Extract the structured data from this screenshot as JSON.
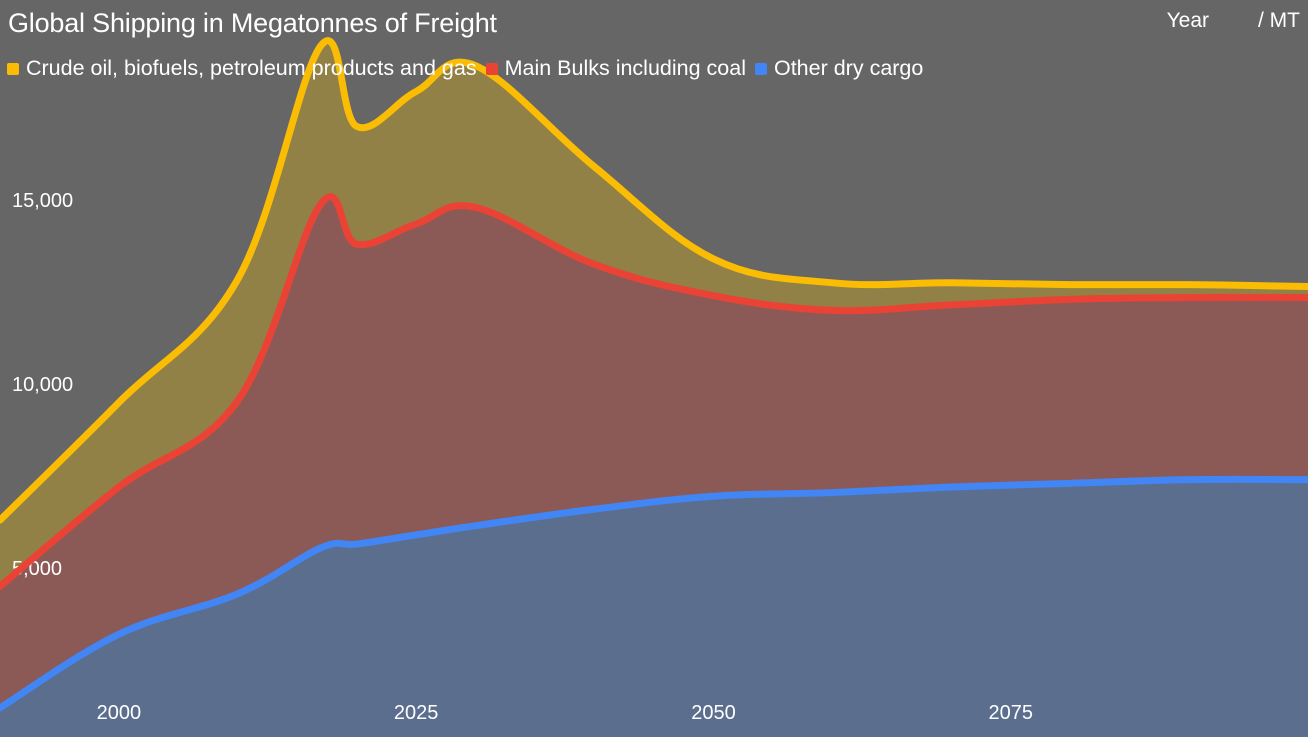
{
  "chart_data": {
    "type": "area",
    "title": "Global Shipping in Megatonnes of Freight",
    "xlabel": "Year",
    "ylabel": "/ MT",
    "xlim": [
      1990,
      2100
    ],
    "ylim": [
      1000,
      20000
    ],
    "x_ticks": [
      2000,
      2025,
      2050,
      2075
    ],
    "y_ticks": [
      5000,
      10000,
      15000
    ],
    "y_tick_labels": [
      "5,000",
      "10,000",
      "15,000"
    ],
    "stacked": true,
    "legend_position": "top-left",
    "grid": false,
    "x": [
      1990,
      2000,
      2010,
      2017,
      2020,
      2025,
      2030,
      2040,
      2050,
      2060,
      2070,
      2080,
      2090,
      2100
    ],
    "series": [
      {
        "name": "Other dry cargo",
        "color": "#4285f4",
        "fill": "#5b6e8e",
        "values": [
          1200,
          3200,
          4300,
          5550,
          5650,
          5900,
          6150,
          6600,
          6950,
          7050,
          7200,
          7300,
          7400,
          7400
        ]
      },
      {
        "name": "Main Bulks including coal",
        "color": "#ea4335",
        "fill": "#8b5a57",
        "values": [
          3300,
          4000,
          5250,
          9350,
          8150,
          8450,
          8650,
          6650,
          5450,
          4950,
          4950,
          5000,
          4950,
          4950
        ]
      },
      {
        "name": "Crude oil, biofuels, petroleum products and gas",
        "color": "#fbbc04",
        "fill": "#928146",
        "values": [
          1800,
          2300,
          3300,
          4300,
          3200,
          3600,
          3850,
          2650,
          1000,
          750,
          600,
          400,
          350,
          300
        ]
      }
    ],
    "legend_order": [
      "Crude oil, biofuels, petroleum products and gas",
      "Main Bulks including coal",
      "Other dry cargo"
    ]
  }
}
